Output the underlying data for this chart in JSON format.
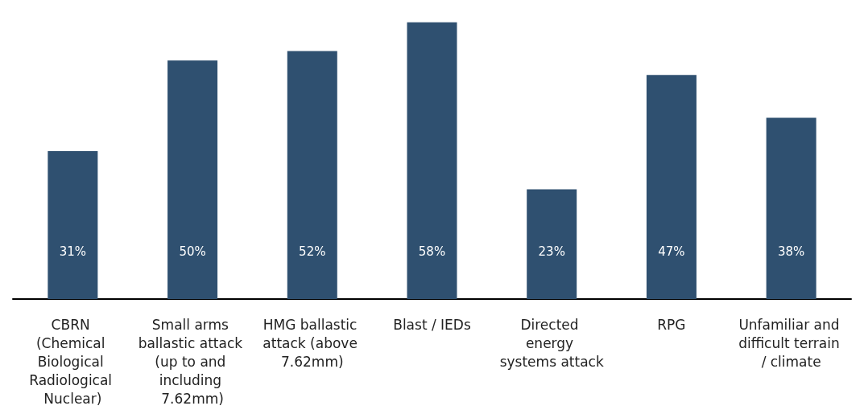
{
  "chart_data": {
    "type": "bar",
    "categories": [
      "CBRN (Chemical Biological Radiological Nuclear)",
      "Small arms ballastic attack (up to and including 7.62mm)",
      "HMG ballastic attack (above 7.62mm)",
      "Blast / IEDs",
      "Directed energy systems attack",
      "RPG",
      "Unfamiliar and difficult terrain / climate"
    ],
    "values": [
      31,
      50,
      52,
      58,
      23,
      47,
      38
    ],
    "color": "#2f5070",
    "value_labels": [
      "31%",
      "50%",
      "52%",
      "58%",
      "23%",
      "47%",
      "38%"
    ],
    "grid": false
  }
}
